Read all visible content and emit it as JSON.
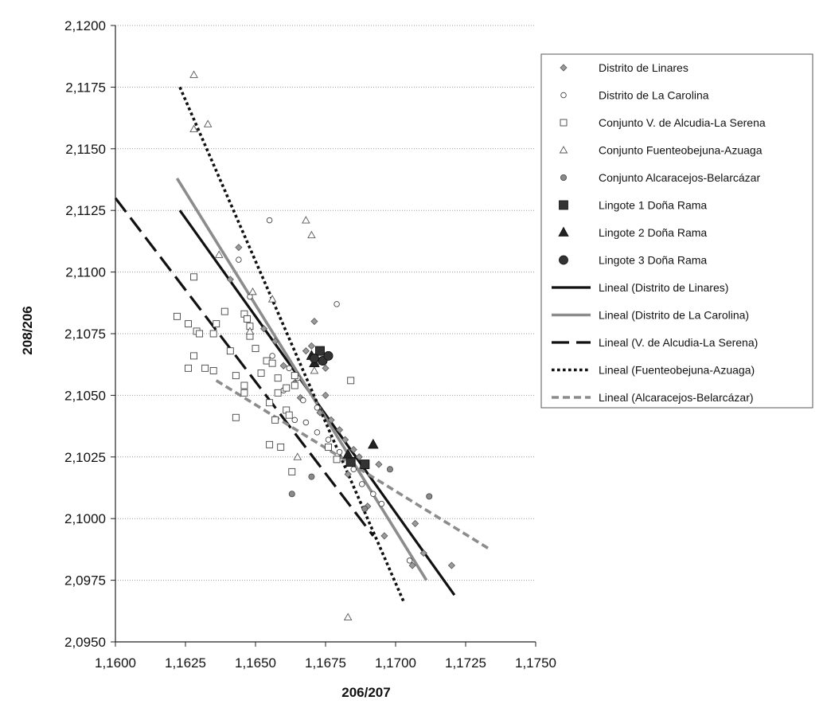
{
  "chart_data": {
    "type": "scatter",
    "title": "",
    "xlabel": "206/207",
    "ylabel": "208/206",
    "xlim": [
      1.16,
      1.175
    ],
    "ylim": [
      2.095,
      2.12
    ],
    "x_ticks": [
      1.16,
      1.1625,
      1.165,
      1.1675,
      1.17,
      1.1725,
      1.175
    ],
    "y_ticks": [
      2.095,
      2.0975,
      2.1,
      2.1025,
      2.105,
      2.1075,
      2.11,
      2.1125,
      2.115,
      2.1175,
      2.12
    ],
    "x_tick_labels": [
      "1,1600",
      "1,1625",
      "1,1650",
      "1,1675",
      "1,1700",
      "1,1725",
      "1,1750"
    ],
    "y_tick_labels": [
      "2,0950",
      "2,0975",
      "2,1000",
      "2,1025",
      "2,1050",
      "2,1075",
      "2,1100",
      "2,1125",
      "2,1150",
      "2,1175",
      "2,1200"
    ],
    "grid": "horizontal",
    "legend_position": "right",
    "series": [
      {
        "name": "Distrito de Linares",
        "marker": "diamond",
        "points": [
          [
            1.1641,
            2.1097
          ],
          [
            1.1644,
            2.111
          ],
          [
            1.1653,
            2.1077
          ],
          [
            1.1657,
            2.1072
          ],
          [
            1.166,
            2.1062
          ],
          [
            1.1664,
            2.1055
          ],
          [
            1.1668,
            2.1068
          ],
          [
            1.1671,
            2.108
          ],
          [
            1.167,
            2.107
          ],
          [
            1.1672,
            2.1063
          ],
          [
            1.1675,
            2.1061
          ],
          [
            1.1675,
            2.105
          ],
          [
            1.1673,
            2.1043
          ],
          [
            1.1677,
            2.104
          ],
          [
            1.168,
            2.1036
          ],
          [
            1.1682,
            2.1032
          ],
          [
            1.1685,
            2.1028
          ],
          [
            1.1687,
            2.1025
          ],
          [
            1.1683,
            2.1018
          ],
          [
            1.169,
            2.1005
          ],
          [
            1.1694,
            2.1022
          ],
          [
            1.1696,
            2.0993
          ],
          [
            1.1707,
            2.0998
          ],
          [
            1.171,
            2.0986
          ],
          [
            1.172,
            2.0981
          ],
          [
            1.1706,
            2.0981
          ],
          [
            1.1666,
            2.1049
          ]
        ]
      },
      {
        "name": "Distrito de La Carolina",
        "marker": "circle-open",
        "points": [
          [
            1.1644,
            2.1105
          ],
          [
            1.1655,
            2.1121
          ],
          [
            1.1648,
            2.109
          ],
          [
            1.1656,
            2.1066
          ],
          [
            1.1662,
            2.1061
          ],
          [
            1.1665,
            2.1057
          ],
          [
            1.166,
            2.1052
          ],
          [
            1.1667,
            2.1048
          ],
          [
            1.1672,
            2.1045
          ],
          [
            1.1664,
            2.104
          ],
          [
            1.1668,
            2.1039
          ],
          [
            1.1672,
            2.1035
          ],
          [
            1.1676,
            2.1032
          ],
          [
            1.1679,
            2.1087
          ],
          [
            1.168,
            2.1027
          ],
          [
            1.1685,
            2.102
          ],
          [
            1.1688,
            2.1014
          ],
          [
            1.1692,
            2.101
          ],
          [
            1.1695,
            2.1006
          ],
          [
            1.1705,
            2.0983
          ]
        ]
      },
      {
        "name": "Conjunto V. de Alcudia-La Serena",
        "marker": "square-open",
        "points": [
          [
            1.1622,
            2.1082
          ],
          [
            1.1626,
            2.1079
          ],
          [
            1.1628,
            2.1098
          ],
          [
            1.1629,
            2.1076
          ],
          [
            1.163,
            2.1075
          ],
          [
            1.1628,
            2.1066
          ],
          [
            1.1626,
            2.1061
          ],
          [
            1.1632,
            2.1061
          ],
          [
            1.1635,
            2.106
          ],
          [
            1.1636,
            2.1079
          ],
          [
            1.1635,
            2.1075
          ],
          [
            1.1639,
            2.1084
          ],
          [
            1.1641,
            2.1068
          ],
          [
            1.1643,
            2.1058
          ],
          [
            1.1643,
            2.1041
          ],
          [
            1.1646,
            2.1083
          ],
          [
            1.1647,
            2.1081
          ],
          [
            1.1648,
            2.1078
          ],
          [
            1.1648,
            2.1074
          ],
          [
            1.165,
            2.1069
          ],
          [
            1.1646,
            2.1054
          ],
          [
            1.1646,
            2.1051
          ],
          [
            1.1652,
            2.1059
          ],
          [
            1.1654,
            2.1064
          ],
          [
            1.1655,
            2.1047
          ],
          [
            1.1655,
            2.103
          ],
          [
            1.1656,
            2.1063
          ],
          [
            1.1658,
            2.1057
          ],
          [
            1.1658,
            2.1051
          ],
          [
            1.1657,
            2.104
          ],
          [
            1.1659,
            2.1029
          ],
          [
            1.1661,
            2.1053
          ],
          [
            1.1661,
            2.1044
          ],
          [
            1.1662,
            2.1042
          ],
          [
            1.1663,
            2.1019
          ],
          [
            1.1664,
            2.1058
          ],
          [
            1.1664,
            2.1054
          ],
          [
            1.1676,
            2.1029
          ],
          [
            1.1679,
            2.1024
          ],
          [
            1.1684,
            2.1056
          ]
        ]
      },
      {
        "name": "Conjunto Fuenteobejuna-Azuaga",
        "marker": "triangle-open",
        "points": [
          [
            1.1628,
            2.118
          ],
          [
            1.1628,
            2.1158
          ],
          [
            1.1633,
            2.116
          ],
          [
            1.1637,
            2.1107
          ],
          [
            1.1649,
            2.1092
          ],
          [
            1.1656,
            2.1089
          ],
          [
            1.1648,
            2.1076
          ],
          [
            1.1668,
            2.1121
          ],
          [
            1.167,
            2.1115
          ],
          [
            1.1671,
            2.106
          ],
          [
            1.1665,
            2.1025
          ],
          [
            1.1683,
            2.096
          ]
        ]
      },
      {
        "name": "Conjunto Alcaracejos-Belarcázar",
        "marker": "circle-gray",
        "points": [
          [
            1.1663,
            2.101
          ],
          [
            1.167,
            2.1017
          ],
          [
            1.1689,
            2.1004
          ],
          [
            1.1698,
            2.102
          ],
          [
            1.1712,
            2.1009
          ]
        ]
      },
      {
        "name": "Lingote 1 Doña Rama",
        "marker": "square-filled",
        "points": [
          [
            1.1673,
            2.1068
          ],
          [
            1.1684,
            2.1023
          ],
          [
            1.1689,
            2.1022
          ]
        ]
      },
      {
        "name": "Lingote 2 Doña Rama",
        "marker": "triangle-filled",
        "points": [
          [
            1.167,
            2.1066
          ],
          [
            1.1671,
            2.1063
          ],
          [
            1.1683,
            2.1026
          ],
          [
            1.1692,
            2.103
          ]
        ]
      },
      {
        "name": "Lingote 3 Doña Rama",
        "marker": "circle-filled",
        "points": [
          [
            1.1671,
            2.1065
          ],
          [
            1.1674,
            2.1064
          ],
          [
            1.1676,
            2.1066
          ]
        ]
      }
    ],
    "trendlines": [
      {
        "name": "Lineal (Distrito de Linares)",
        "style": "solid-black",
        "from": [
          1.1623,
          2.1125
        ],
        "to": [
          1.1721,
          2.0969
        ]
      },
      {
        "name": "Lineal (Distrito de La Carolina)",
        "style": "solid-gray",
        "from": [
          1.1622,
          2.1138
        ],
        "to": [
          1.1711,
          2.0975
        ]
      },
      {
        "name": "Lineal (V. de Alcudia-La Serena)",
        "style": "long-dash-black",
        "from": [
          1.16,
          2.113
        ],
        "to": [
          1.1692,
          2.0993
        ]
      },
      {
        "name": "Lineal (Fuenteobejuna-Azuaga)",
        "style": "dotted-black",
        "from": [
          1.1623,
          2.1175
        ],
        "to": [
          1.1703,
          2.0966
        ]
      },
      {
        "name": "Lineal (Alcaracejos-Belarcázar)",
        "style": "dash-gray",
        "from": [
          1.1636,
          2.1056
        ],
        "to": [
          1.1733,
          2.0988
        ]
      }
    ]
  }
}
